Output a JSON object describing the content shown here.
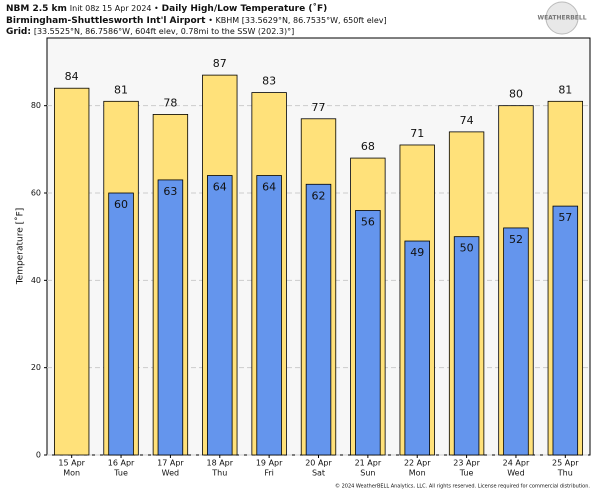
{
  "chart_data": {
    "type": "bar",
    "model": "NBM 2.5 km",
    "init": "Init 08z 15 Apr 2024 •",
    "title": "Daily High/Low Temperature (˚F)",
    "station": "Birmingham-Shuttlesworth Int'l Airport",
    "station_info": "• KBHM [33.5629°N, 86.7535°W, 650ft elev]",
    "grid_label": "Grid:",
    "grid_info": "[33.5525°N, 86.7586°W, 604ft elev, 0.78mi to the SSW (202.3)°]",
    "logo": "WEATHERBELL",
    "footer": "© 2024 WeatherBELL Analytics, LLC. All rights reserved. License required for commercial distribution.",
    "y_label": "Temperature [˚F]",
    "categories": [
      [
        "15 Apr",
        "Mon"
      ],
      [
        "16 Apr",
        "Tue"
      ],
      [
        "17 Apr",
        "Wed"
      ],
      [
        "18 Apr",
        "Thu"
      ],
      [
        "19 Apr",
        "Fri"
      ],
      [
        "20 Apr",
        "Sat"
      ],
      [
        "21 Apr",
        "Sun"
      ],
      [
        "22 Apr",
        "Mon"
      ],
      [
        "23 Apr",
        "Tue"
      ],
      [
        "24 Apr",
        "Wed"
      ],
      [
        "25 Apr",
        "Thu"
      ]
    ],
    "series": [
      {
        "name": "High",
        "color": "#ffe17a",
        "values": [
          84,
          81,
          78,
          87,
          83,
          77,
          68,
          71,
          74,
          80,
          81
        ]
      },
      {
        "name": "Low",
        "color": "#6495ed",
        "values": [
          null,
          60,
          63,
          64,
          64,
          62,
          56,
          49,
          50,
          52,
          57
        ]
      }
    ],
    "ylim": [
      0,
      95.5
    ],
    "yticks": [
      0,
      20,
      40,
      60,
      80
    ],
    "grid": true
  }
}
